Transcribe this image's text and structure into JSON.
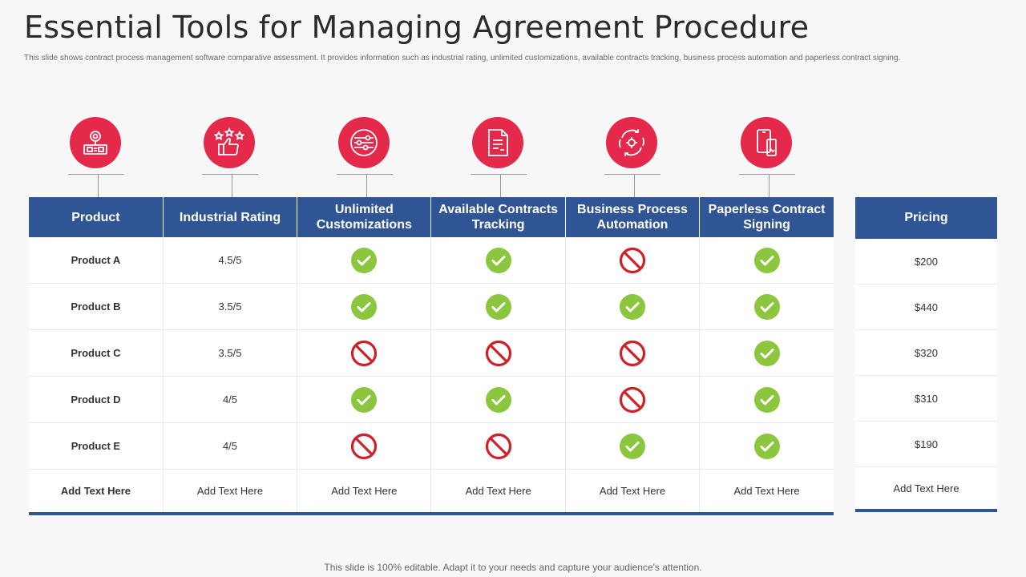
{
  "title": "Essential Tools for Managing Agreement Procedure",
  "subtitle": "This slide shows contract process management software comparative assessment. It provides information such as industrial rating, unlimited  customizations, available contracts tracking, business process automation and paperless contract signing.",
  "colors": {
    "accent": "#e4294b",
    "header": "#2f5594",
    "yes": "#8cc63f",
    "no": "#d0202a"
  },
  "icons": [
    "product-icon",
    "rating-icon",
    "customization-icon",
    "tracking-icon",
    "automation-icon",
    "signing-icon"
  ],
  "headers": [
    "Product",
    "Industrial Rating",
    "Unlimited Customizations",
    "Available Contracts Tracking",
    "Business Process Automation",
    "Paperless Contract Signing"
  ],
  "rows": [
    {
      "product": "Product A",
      "rating": "4.5/5",
      "features": [
        "yes",
        "yes",
        "no",
        "yes"
      ]
    },
    {
      "product": "Product B",
      "rating": "3.5/5",
      "features": [
        "yes",
        "yes",
        "yes",
        "yes"
      ]
    },
    {
      "product": "Product C",
      "rating": "3.5/5",
      "features": [
        "no",
        "no",
        "no",
        "yes"
      ]
    },
    {
      "product": "Product D",
      "rating": "4/5",
      "features": [
        "yes",
        "yes",
        "no",
        "yes"
      ]
    },
    {
      "product": "Product E",
      "rating": "4/5",
      "features": [
        "no",
        "no",
        "yes",
        "yes"
      ]
    }
  ],
  "last_row": [
    "Add Text Here",
    "Add Text Here",
    "Add Text Here",
    "Add Text Here",
    "Add Text Here",
    "Add Text Here"
  ],
  "pricing": {
    "header": "Pricing",
    "values": [
      "$200",
      "$440",
      "$320",
      "$310",
      "$190"
    ],
    "last": "Add Text Here"
  },
  "footer": "This slide is 100% editable. Adapt it to your needs and capture your audience's attention."
}
